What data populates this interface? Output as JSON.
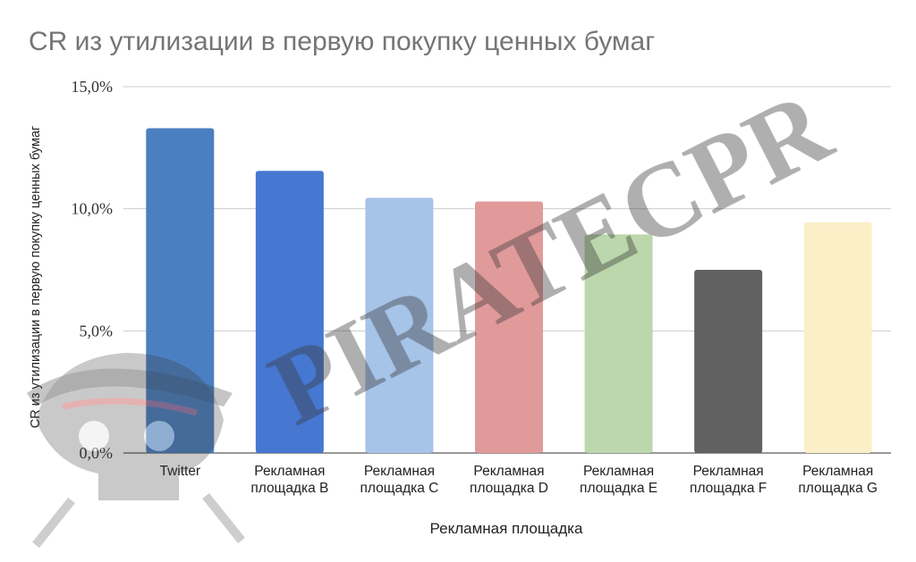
{
  "chart_data": {
    "type": "bar",
    "title": "CR из утилизации в первую покупку ценных бумаг",
    "xlabel": "Рекламная площадка",
    "ylabel": "CR из утилизации в первую покупку ценных бумаг",
    "categories": [
      "Twitter",
      "Рекламная площадка B",
      "Рекламная площадка C",
      "Рекламная площадка D",
      "Рекламная площадка E",
      "Рекламная площадка F",
      "Рекламная площадка G"
    ],
    "category_lines": [
      [
        "Twitter"
      ],
      [
        "Рекламная",
        "площадка B"
      ],
      [
        "Рекламная",
        "площадка C"
      ],
      [
        "Рекламная",
        "площадка D"
      ],
      [
        "Рекламная",
        "площадка E"
      ],
      [
        "Рекламная",
        "площадка F"
      ],
      [
        "Рекламная",
        "площадка G"
      ]
    ],
    "values": [
      13.3,
      11.55,
      10.45,
      10.3,
      8.95,
      7.5,
      9.45
    ],
    "colors": [
      "#4a7fc1",
      "#4677d1",
      "#a6c3e8",
      "#e19a9a",
      "#bcd7ac",
      "#616161",
      "#fbefc8"
    ],
    "ylim": [
      0,
      15
    ],
    "yticks": [
      "0,0%",
      "5,0%",
      "10,0%",
      "15,0%"
    ],
    "ytick_values": [
      0,
      5,
      10,
      15
    ],
    "grid": true,
    "legend": "none"
  },
  "watermark": {
    "text": "PIRATECPR",
    "icon": "pirate-skull-icon"
  }
}
